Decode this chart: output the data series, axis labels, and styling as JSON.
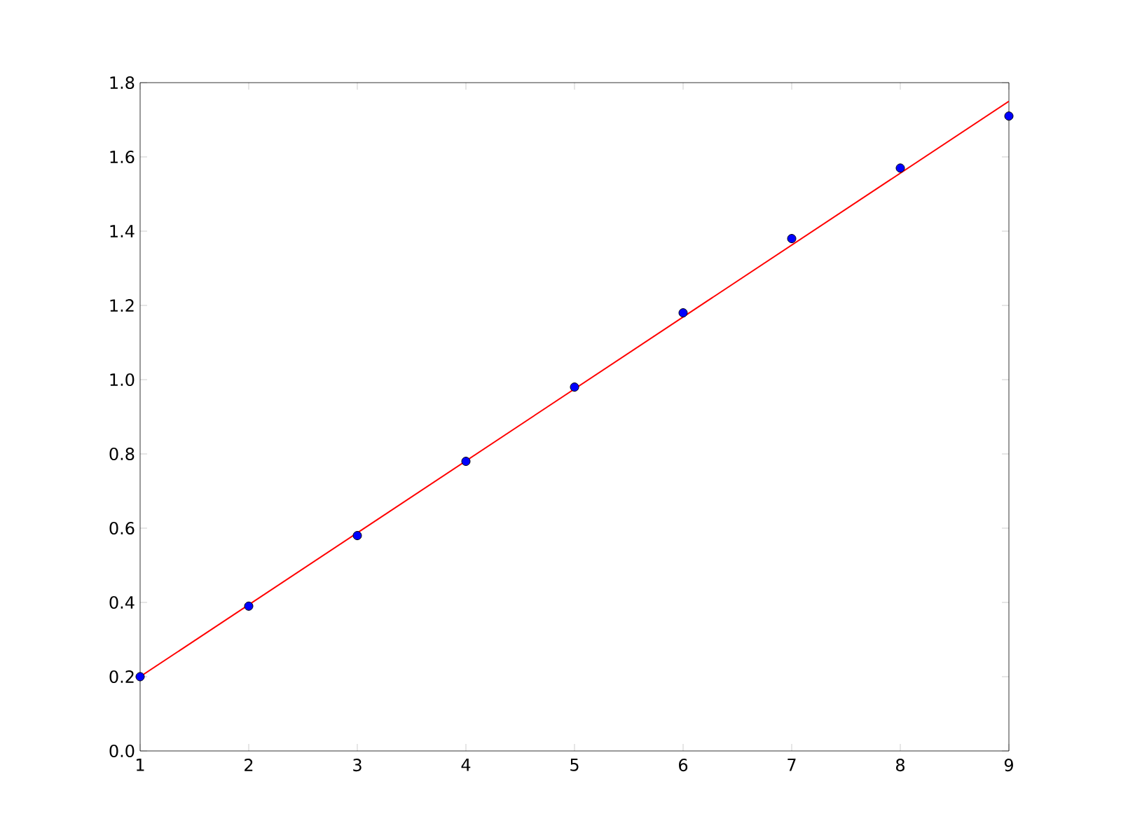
{
  "chart_data": {
    "type": "scatter",
    "xlim": [
      1,
      9
    ],
    "ylim": [
      0,
      1.8
    ],
    "xticks": [
      1,
      2,
      3,
      4,
      5,
      6,
      7,
      8,
      9
    ],
    "yticks": [
      {
        "value": 0,
        "label": "0.0"
      },
      0.2,
      0.4,
      0.6,
      0.8,
      {
        "value": 1.0,
        "label": "1.0"
      },
      1.2,
      1.4,
      1.6,
      1.8
    ],
    "series": [
      {
        "marker": "circle",
        "color": "#0000ff",
        "x": [
          1,
          2,
          3,
          4,
          5,
          6,
          7,
          8,
          9
        ],
        "values": [
          0.2,
          0.39,
          0.58,
          0.78,
          0.98,
          1.18,
          1.38,
          1.57,
          1.71
        ]
      },
      {
        "type": "line",
        "line_style": "solid",
        "color": "#ff0000",
        "x": [
          1,
          9
        ],
        "values": [
          0.2,
          1.75
        ]
      }
    ]
  }
}
